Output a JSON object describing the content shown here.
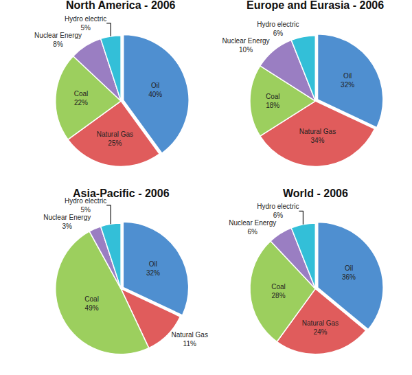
{
  "chart_data": [
    {
      "type": "pie",
      "title": "North America - 2006",
      "categories": [
        "Oil",
        "Natural Gas",
        "Coal",
        "Nuclear Energy",
        "Hydro electric"
      ],
      "values": [
        40,
        25,
        22,
        8,
        5
      ],
      "value_labels": [
        "40%",
        "25%",
        "22%",
        "8%",
        "5%"
      ],
      "colors": [
        "#4f8fd0",
        "#e05c5c",
        "#9ccf5e",
        "#9a7ec2",
        "#33bfd8"
      ],
      "data_labels": true
    },
    {
      "type": "pie",
      "title": "Europe and Eurasia - 2006",
      "categories": [
        "Oil",
        "Natural Gas",
        "Coal",
        "Nuclear Energy",
        "Hydro electric"
      ],
      "values": [
        32,
        34,
        18,
        10,
        6
      ],
      "value_labels": [
        "32%",
        "34%",
        "18%",
        "10%",
        "6%"
      ],
      "colors": [
        "#4f8fd0",
        "#e05c5c",
        "#9ccf5e",
        "#9a7ec2",
        "#33bfd8"
      ],
      "data_labels": true
    },
    {
      "type": "pie",
      "title": "Asia-Pacific - 2006",
      "categories": [
        "Oil",
        "Natural Gas",
        "Coal",
        "Nuclear Energy",
        "Hydro electric"
      ],
      "values": [
        32,
        11,
        49,
        3,
        5
      ],
      "value_labels": [
        "32%",
        "11%",
        "49%",
        "3%",
        "5%"
      ],
      "colors": [
        "#4f8fd0",
        "#e05c5c",
        "#9ccf5e",
        "#9a7ec2",
        "#33bfd8"
      ],
      "data_labels": true
    },
    {
      "type": "pie",
      "title": "World - 2006",
      "categories": [
        "Oil",
        "Natural Gas",
        "Coal",
        "Nuclear Energy",
        "Hydro electric"
      ],
      "values": [
        36,
        24,
        28,
        6,
        6
      ],
      "value_labels": [
        "36%",
        "24%",
        "28%",
        "6%",
        "6%"
      ],
      "colors": [
        "#4f8fd0",
        "#e05c5c",
        "#9ccf5e",
        "#9a7ec2",
        "#33bfd8"
      ],
      "data_labels": true
    }
  ]
}
